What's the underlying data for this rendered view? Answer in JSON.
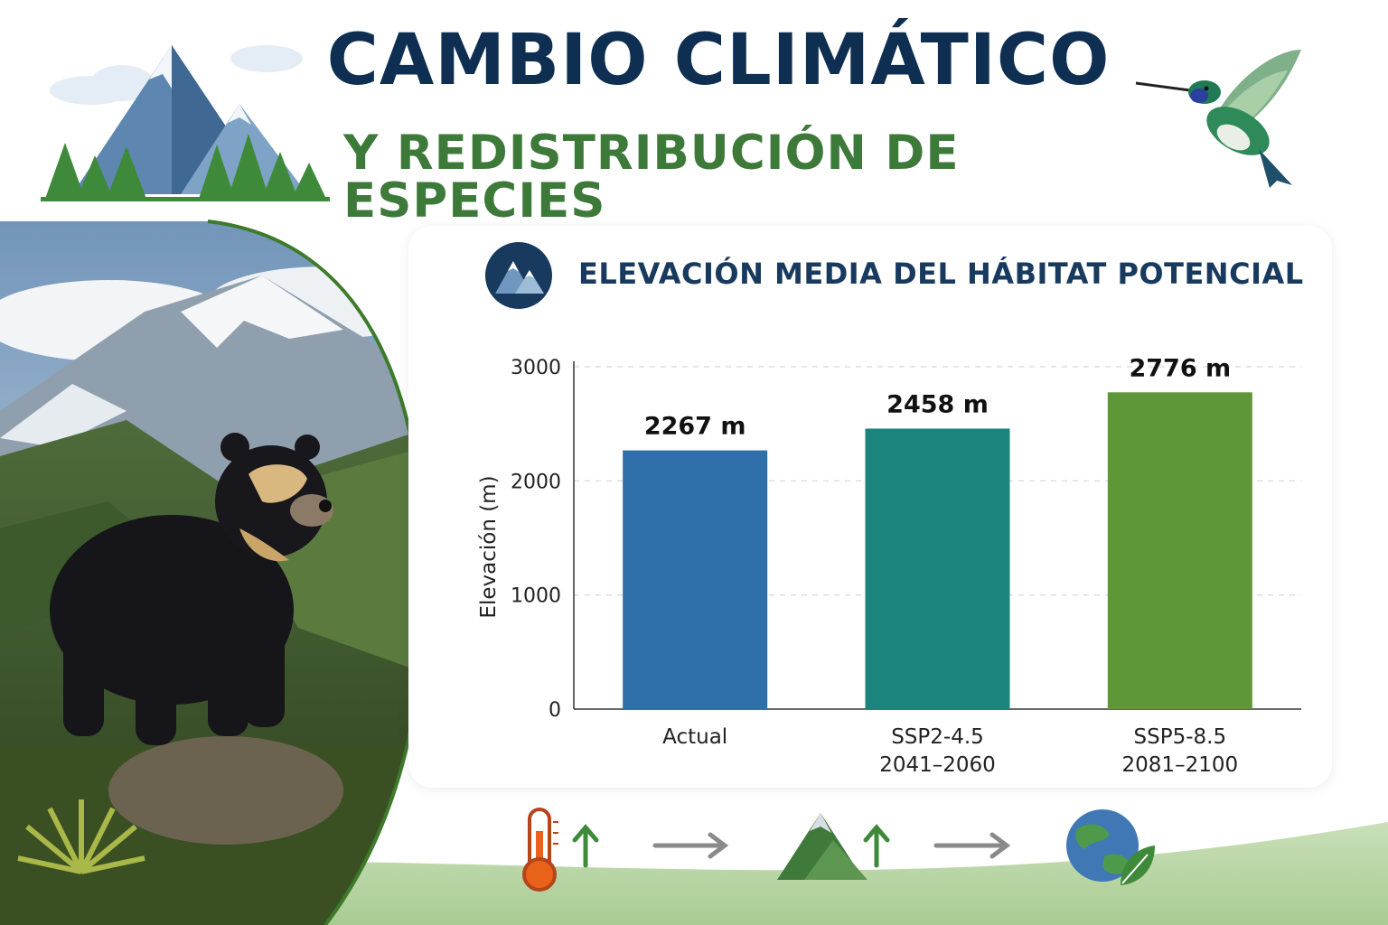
{
  "header": {
    "title": "CAMBIO CLIMÁTICO",
    "subtitle": "Y REDISTRIBUCIÓN DE ESPECIES"
  },
  "card": {
    "title": "ELEVACIÓN MEDIA DEL HÁBITAT POTENCIAL"
  },
  "colors": {
    "navy": "#0f2f52",
    "green_title": "#3d7a3a",
    "bar_actual": "#2f6faa",
    "bar_ssp245": "#1b847c",
    "bar_ssp585": "#5f9638"
  },
  "icons": [
    "mountain-icon",
    "hummingbird-icon",
    "thermometer-icon",
    "arrow-up-icon",
    "arrow-right-icon",
    "globe-leaf-icon"
  ],
  "chart_data": {
    "type": "bar",
    "title": "ELEVACIÓN MEDIA DEL HÁBITAT POTENCIAL",
    "ylabel": "Elevación (m)",
    "xlabel": "",
    "ylim": [
      0,
      3000
    ],
    "yticks": [
      0,
      1000,
      2000,
      3000
    ],
    "grid": true,
    "categories": [
      [
        "Actual"
      ],
      [
        "SSP2-4.5",
        "2041–2060"
      ],
      [
        "SSP5-8.5",
        "2081–2100"
      ]
    ],
    "values": [
      2267,
      2458,
      2776
    ],
    "value_labels": [
      "2267 m",
      "2458 m",
      "2776 m"
    ],
    "bar_colors": [
      "#2f6faa",
      "#1b847c",
      "#5f9638"
    ]
  }
}
